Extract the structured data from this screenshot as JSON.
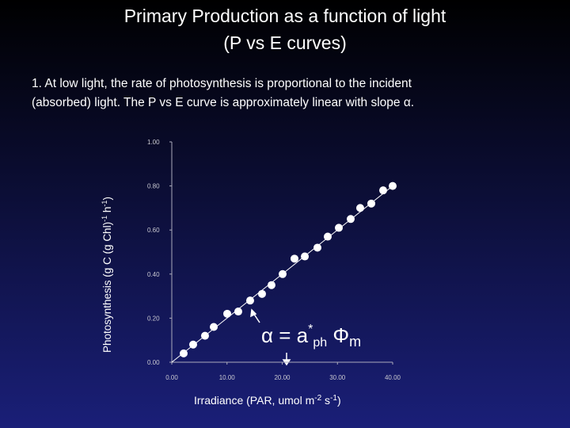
{
  "chart_data": {
    "type": "scatter",
    "title": "Primary Production as a function of light",
    "subtitle": "(P vs E curves)",
    "note": [
      "1.  At low light, the rate of photosynthesis is proportional to the incident",
      "(absorbed) light.  The P vs E curve is approximately linear with slope α."
    ],
    "xlabel": [
      "Irradiance (PAR, umol m",
      "-2",
      " s",
      "-1",
      ")"
    ],
    "ylabel": [
      "Photosynthesis (g C (g Chl)",
      "-1",
      " h",
      "-1",
      ")"
    ],
    "annotation": [
      "α = a",
      "*",
      "ph",
      " Φ",
      "m"
    ],
    "color": "#ffffff",
    "xlim": [
      0,
      40
    ],
    "ylim": [
      0,
      1
    ],
    "xticks": [
      {
        "value": 0,
        "label": "0.00"
      },
      {
        "value": 10,
        "label": "10.00"
      },
      {
        "value": 20,
        "label": "20.00"
      },
      {
        "value": 30,
        "label": "30.00"
      },
      {
        "value": 40,
        "label": "40.00"
      }
    ],
    "yticks": [
      {
        "value": 0,
        "label": "0.00"
      },
      {
        "value": 0.2,
        "label": "0.20"
      },
      {
        "value": 0.4,
        "label": "0.40"
      },
      {
        "value": 0.6,
        "label": "0.60"
      },
      {
        "value": 0.8,
        "label": "0.80"
      },
      {
        "value": 1,
        "label": "1.00"
      }
    ],
    "x": [
      2.15,
      3.87,
      6.02,
      7.6,
      10.04,
      12.04,
      14.19,
      16.34,
      18.06,
      20.07,
      22.22,
      24.09,
      26.38,
      28.24,
      30.25,
      32.4,
      34.12,
      36.13,
      38.28,
      40
    ],
    "values": [
      0.04,
      0.08,
      0.12,
      0.16,
      0.22,
      0.23,
      0.28,
      0.31,
      0.35,
      0.4,
      0.47,
      0.48,
      0.52,
      0.57,
      0.61,
      0.65,
      0.7,
      0.72,
      0.78,
      0.8
    ]
  }
}
